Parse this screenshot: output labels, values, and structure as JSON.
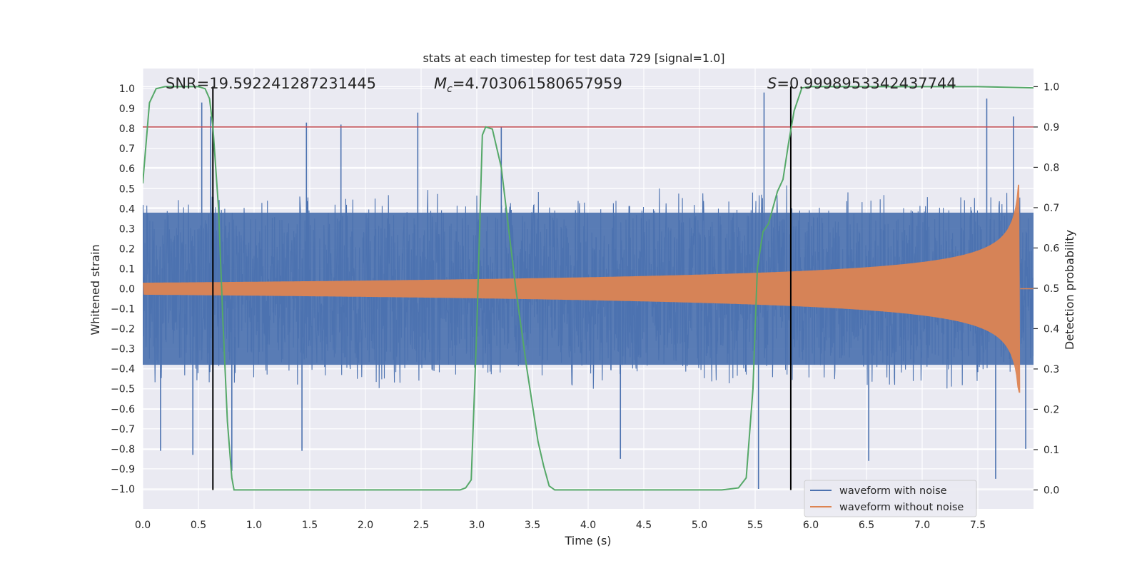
{
  "chart_data": {
    "type": "line",
    "title": "stats at each timestep for test data 729 [signal=1.0]",
    "xlabel": "Time (s)",
    "ylabel": "Whitened strain",
    "y2label": "Detection probability",
    "xlim": [
      0.0,
      8.0
    ],
    "ylim": [
      -1.1,
      1.1
    ],
    "y2lim": [
      -0.047,
      1.045
    ],
    "grid": true,
    "legend_position": "lower-right",
    "x_ticks": [
      "0.0",
      "0.5",
      "1.0",
      "1.5",
      "2.0",
      "2.5",
      "3.0",
      "3.5",
      "4.0",
      "4.5",
      "5.0",
      "5.5",
      "6.0",
      "6.5",
      "7.0",
      "7.5"
    ],
    "y_ticks": [
      "1.0",
      "0.9",
      "0.8",
      "0.7",
      "0.6",
      "0.5",
      "0.4",
      "0.3",
      "0.2",
      "0.1",
      "0.0",
      "−0.1",
      "−0.2",
      "−0.3",
      "−0.4",
      "−0.5",
      "−0.6",
      "−0.7",
      "−0.8",
      "−0.9",
      "−1.0"
    ],
    "y2_ticks": [
      "1.0",
      "0.9",
      "0.8",
      "0.7",
      "0.6",
      "0.5",
      "0.4",
      "0.3",
      "0.2",
      "0.1",
      "0.0"
    ],
    "annotations": {
      "snr": "SNR=19.592241287231445",
      "mc_symbol": "M",
      "mc_sub": "c",
      "mc_value": "=4.703061580657959",
      "s_symbol": "S",
      "s_value": "=0.9998953342437744"
    },
    "threshold": 0.9,
    "vertical_markers": [
      0.63,
      5.82
    ],
    "series": [
      {
        "name": "waveform with noise",
        "color": "#4c72b0",
        "typical_amplitude": 0.4,
        "spikes": [
          [
            0.53,
            0.93
          ],
          [
            0.61,
            0.86
          ],
          [
            1.47,
            0.83
          ],
          [
            1.78,
            0.82
          ],
          [
            2.47,
            0.88
          ],
          [
            3.22,
            0.81
          ],
          [
            5.58,
            0.98
          ],
          [
            7.58,
            0.95
          ],
          [
            7.82,
            0.86
          ],
          [
            0.16,
            -0.81
          ],
          [
            0.45,
            -0.83
          ],
          [
            0.8,
            -0.91
          ],
          [
            1.43,
            -0.81
          ],
          [
            4.29,
            -0.85
          ],
          [
            6.52,
            -0.86
          ],
          [
            7.66,
            -0.95
          ],
          [
            7.93,
            -0.8
          ],
          [
            5.53,
            -1.0
          ]
        ]
      },
      {
        "name": "waveform without noise",
        "color": "#dd8452",
        "start_amplitude": 0.03,
        "peak_amplitude": 0.52,
        "merger_time": 7.88
      },
      {
        "name": "detection probability",
        "color": "#55a868",
        "axis": "right",
        "x": [
          0.0,
          0.06,
          0.12,
          0.2,
          0.3,
          0.4,
          0.5,
          0.56,
          0.6,
          0.63,
          0.68,
          0.72,
          0.76,
          0.8,
          0.82,
          1.0,
          1.5,
          2.0,
          2.5,
          2.85,
          2.9,
          2.95,
          3.0,
          3.05,
          3.08,
          3.14,
          3.22,
          3.35,
          3.45,
          3.55,
          3.6,
          3.65,
          3.7,
          4.0,
          4.5,
          5.0,
          5.2,
          5.35,
          5.42,
          5.48,
          5.52,
          5.57,
          5.62,
          5.7,
          5.75,
          5.8,
          5.85,
          5.92,
          6.0,
          6.5,
          7.0,
          7.5,
          8.0
        ],
        "y": [
          0.76,
          0.96,
          0.995,
          1.0,
          1.0,
          1.0,
          1.0,
          0.995,
          0.97,
          0.9,
          0.7,
          0.42,
          0.17,
          0.03,
          0.0,
          0.0,
          0.0,
          0.0,
          0.0,
          0.0,
          0.005,
          0.025,
          0.4,
          0.88,
          0.9,
          0.895,
          0.8,
          0.5,
          0.3,
          0.12,
          0.06,
          0.01,
          0.0,
          0.0,
          0.0,
          0.0,
          0.0,
          0.005,
          0.03,
          0.25,
          0.55,
          0.64,
          0.66,
          0.74,
          0.77,
          0.86,
          0.94,
          0.997,
          1.0,
          1.0,
          1.0,
          1.0,
          0.997
        ]
      }
    ]
  }
}
